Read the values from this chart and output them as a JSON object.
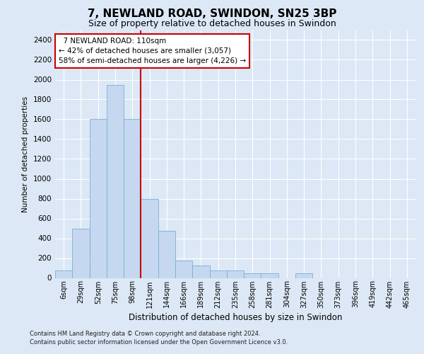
{
  "title": "7, NEWLAND ROAD, SWINDON, SN25 3BP",
  "subtitle": "Size of property relative to detached houses in Swindon",
  "xlabel": "Distribution of detached houses by size in Swindon",
  "ylabel": "Number of detached properties",
  "footnote1": "Contains HM Land Registry data © Crown copyright and database right 2024.",
  "footnote2": "Contains public sector information licensed under the Open Government Licence v3.0.",
  "bar_labels": [
    "6sqm",
    "29sqm",
    "52sqm",
    "75sqm",
    "98sqm",
    "121sqm",
    "144sqm",
    "166sqm",
    "189sqm",
    "212sqm",
    "235sqm",
    "258sqm",
    "281sqm",
    "304sqm",
    "327sqm",
    "350sqm",
    "373sqm",
    "396sqm",
    "419sqm",
    "442sqm",
    "465sqm"
  ],
  "bar_values": [
    75,
    500,
    1600,
    1950,
    1600,
    800,
    475,
    175,
    125,
    75,
    75,
    50,
    50,
    0,
    50,
    0,
    0,
    0,
    0,
    0,
    0
  ],
  "bar_color": "#c5d8f0",
  "bar_edge_color": "#7aafd4",
  "vline_x_index": 4,
  "vline_color": "#cc0000",
  "annotation_title": "7 NEWLAND ROAD: 110sqm",
  "annotation_line1": "← 42% of detached houses are smaller (3,057)",
  "annotation_line2": "58% of semi-detached houses are larger (4,226) →",
  "annotation_box_color": "#ffffff",
  "annotation_box_edge": "#cc0000",
  "ylim": [
    0,
    2500
  ],
  "yticks": [
    0,
    200,
    400,
    600,
    800,
    1000,
    1200,
    1400,
    1600,
    1800,
    2000,
    2200,
    2400
  ],
  "bg_color": "#dce8f5",
  "plot_bg_color": "#dce8f5",
  "grid_color": "#ffffff",
  "title_fontsize": 11,
  "subtitle_fontsize": 9
}
